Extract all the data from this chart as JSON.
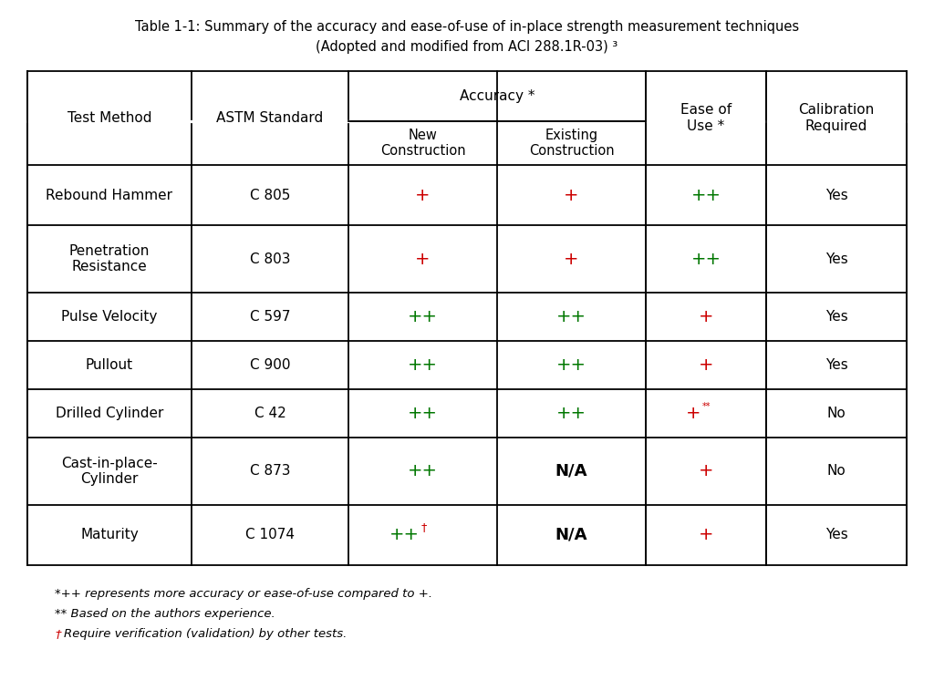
{
  "title_line1": "Table 1-1: Summary of the accuracy and ease-of-use of in-place strength measurement techniques",
  "title_line2": "(Adopted and modified from ACI 288.1R-03) ³",
  "rows": [
    {
      "method": "Rebound Hammer",
      "astm": "C 805",
      "new_constr_symbol": "+",
      "new_constr_color": "#cc0000",
      "exist_constr_symbol": "+",
      "exist_constr_color": "#cc0000",
      "ease_symbol": "++",
      "ease_color": "#007700",
      "calibration": "Yes"
    },
    {
      "method": "Penetration\nResistance",
      "astm": "C 803",
      "new_constr_symbol": "+",
      "new_constr_color": "#cc0000",
      "exist_constr_symbol": "+",
      "exist_constr_color": "#cc0000",
      "ease_symbol": "++",
      "ease_color": "#007700",
      "calibration": "Yes"
    },
    {
      "method": "Pulse Velocity",
      "astm": "C 597",
      "new_constr_symbol": "++",
      "new_constr_color": "#007700",
      "exist_constr_symbol": "++",
      "exist_constr_color": "#007700",
      "ease_symbol": "+",
      "ease_color": "#cc0000",
      "calibration": "Yes"
    },
    {
      "method": "Pullout",
      "astm": "C 900",
      "new_constr_symbol": "++",
      "new_constr_color": "#007700",
      "exist_constr_symbol": "++",
      "exist_constr_color": "#007700",
      "ease_symbol": "+",
      "ease_color": "#cc0000",
      "calibration": "Yes"
    },
    {
      "method": "Drilled Cylinder",
      "astm": "C 42",
      "new_constr_symbol": "++",
      "new_constr_color": "#007700",
      "exist_constr_symbol": "++",
      "exist_constr_color": "#007700",
      "ease_symbol": "+**",
      "ease_color": "#cc0000",
      "calibration": "No"
    },
    {
      "method": "Cast-in-place-\nCylinder",
      "astm": "C 873",
      "new_constr_symbol": "++",
      "new_constr_color": "#007700",
      "exist_constr_symbol": "N/A",
      "exist_constr_color": "#000000",
      "ease_symbol": "+",
      "ease_color": "#cc0000",
      "calibration": "No"
    },
    {
      "method": "Maturity",
      "astm": "C 1074",
      "new_constr_symbol": "++†",
      "new_constr_color": "#007700",
      "exist_constr_symbol": "N/A",
      "exist_constr_color": "#000000",
      "ease_symbol": "+",
      "ease_color": "#cc0000",
      "calibration": "Yes"
    }
  ],
  "bg_color": "#ffffff",
  "title_fontsize": 10.5,
  "cell_fontsize": 11,
  "symbol_fontsize": 14,
  "footnote_fontsize": 9.5
}
